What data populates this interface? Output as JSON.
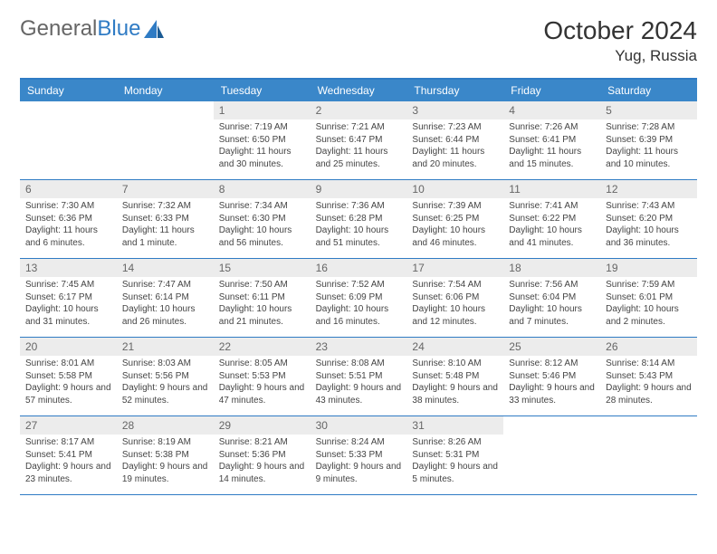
{
  "brand": {
    "part1": "General",
    "part2": "Blue"
  },
  "title": "October 2024",
  "location": "Yug, Russia",
  "colors": {
    "header_bg": "#3a87c9",
    "border": "#2f7bc4",
    "daynum_bg": "#ececec",
    "text": "#444444"
  },
  "day_names": [
    "Sunday",
    "Monday",
    "Tuesday",
    "Wednesday",
    "Thursday",
    "Friday",
    "Saturday"
  ],
  "weeks": [
    [
      {
        "empty": true
      },
      {
        "empty": true
      },
      {
        "num": "1",
        "sunrise": "Sunrise: 7:19 AM",
        "sunset": "Sunset: 6:50 PM",
        "daylight": "Daylight: 11 hours and 30 minutes."
      },
      {
        "num": "2",
        "sunrise": "Sunrise: 7:21 AM",
        "sunset": "Sunset: 6:47 PM",
        "daylight": "Daylight: 11 hours and 25 minutes."
      },
      {
        "num": "3",
        "sunrise": "Sunrise: 7:23 AM",
        "sunset": "Sunset: 6:44 PM",
        "daylight": "Daylight: 11 hours and 20 minutes."
      },
      {
        "num": "4",
        "sunrise": "Sunrise: 7:26 AM",
        "sunset": "Sunset: 6:41 PM",
        "daylight": "Daylight: 11 hours and 15 minutes."
      },
      {
        "num": "5",
        "sunrise": "Sunrise: 7:28 AM",
        "sunset": "Sunset: 6:39 PM",
        "daylight": "Daylight: 11 hours and 10 minutes."
      }
    ],
    [
      {
        "num": "6",
        "sunrise": "Sunrise: 7:30 AM",
        "sunset": "Sunset: 6:36 PM",
        "daylight": "Daylight: 11 hours and 6 minutes."
      },
      {
        "num": "7",
        "sunrise": "Sunrise: 7:32 AM",
        "sunset": "Sunset: 6:33 PM",
        "daylight": "Daylight: 11 hours and 1 minute."
      },
      {
        "num": "8",
        "sunrise": "Sunrise: 7:34 AM",
        "sunset": "Sunset: 6:30 PM",
        "daylight": "Daylight: 10 hours and 56 minutes."
      },
      {
        "num": "9",
        "sunrise": "Sunrise: 7:36 AM",
        "sunset": "Sunset: 6:28 PM",
        "daylight": "Daylight: 10 hours and 51 minutes."
      },
      {
        "num": "10",
        "sunrise": "Sunrise: 7:39 AM",
        "sunset": "Sunset: 6:25 PM",
        "daylight": "Daylight: 10 hours and 46 minutes."
      },
      {
        "num": "11",
        "sunrise": "Sunrise: 7:41 AM",
        "sunset": "Sunset: 6:22 PM",
        "daylight": "Daylight: 10 hours and 41 minutes."
      },
      {
        "num": "12",
        "sunrise": "Sunrise: 7:43 AM",
        "sunset": "Sunset: 6:20 PM",
        "daylight": "Daylight: 10 hours and 36 minutes."
      }
    ],
    [
      {
        "num": "13",
        "sunrise": "Sunrise: 7:45 AM",
        "sunset": "Sunset: 6:17 PM",
        "daylight": "Daylight: 10 hours and 31 minutes."
      },
      {
        "num": "14",
        "sunrise": "Sunrise: 7:47 AM",
        "sunset": "Sunset: 6:14 PM",
        "daylight": "Daylight: 10 hours and 26 minutes."
      },
      {
        "num": "15",
        "sunrise": "Sunrise: 7:50 AM",
        "sunset": "Sunset: 6:11 PM",
        "daylight": "Daylight: 10 hours and 21 minutes."
      },
      {
        "num": "16",
        "sunrise": "Sunrise: 7:52 AM",
        "sunset": "Sunset: 6:09 PM",
        "daylight": "Daylight: 10 hours and 16 minutes."
      },
      {
        "num": "17",
        "sunrise": "Sunrise: 7:54 AM",
        "sunset": "Sunset: 6:06 PM",
        "daylight": "Daylight: 10 hours and 12 minutes."
      },
      {
        "num": "18",
        "sunrise": "Sunrise: 7:56 AM",
        "sunset": "Sunset: 6:04 PM",
        "daylight": "Daylight: 10 hours and 7 minutes."
      },
      {
        "num": "19",
        "sunrise": "Sunrise: 7:59 AM",
        "sunset": "Sunset: 6:01 PM",
        "daylight": "Daylight: 10 hours and 2 minutes."
      }
    ],
    [
      {
        "num": "20",
        "sunrise": "Sunrise: 8:01 AM",
        "sunset": "Sunset: 5:58 PM",
        "daylight": "Daylight: 9 hours and 57 minutes."
      },
      {
        "num": "21",
        "sunrise": "Sunrise: 8:03 AM",
        "sunset": "Sunset: 5:56 PM",
        "daylight": "Daylight: 9 hours and 52 minutes."
      },
      {
        "num": "22",
        "sunrise": "Sunrise: 8:05 AM",
        "sunset": "Sunset: 5:53 PM",
        "daylight": "Daylight: 9 hours and 47 minutes."
      },
      {
        "num": "23",
        "sunrise": "Sunrise: 8:08 AM",
        "sunset": "Sunset: 5:51 PM",
        "daylight": "Daylight: 9 hours and 43 minutes."
      },
      {
        "num": "24",
        "sunrise": "Sunrise: 8:10 AM",
        "sunset": "Sunset: 5:48 PM",
        "daylight": "Daylight: 9 hours and 38 minutes."
      },
      {
        "num": "25",
        "sunrise": "Sunrise: 8:12 AM",
        "sunset": "Sunset: 5:46 PM",
        "daylight": "Daylight: 9 hours and 33 minutes."
      },
      {
        "num": "26",
        "sunrise": "Sunrise: 8:14 AM",
        "sunset": "Sunset: 5:43 PM",
        "daylight": "Daylight: 9 hours and 28 minutes."
      }
    ],
    [
      {
        "num": "27",
        "sunrise": "Sunrise: 8:17 AM",
        "sunset": "Sunset: 5:41 PM",
        "daylight": "Daylight: 9 hours and 23 minutes."
      },
      {
        "num": "28",
        "sunrise": "Sunrise: 8:19 AM",
        "sunset": "Sunset: 5:38 PM",
        "daylight": "Daylight: 9 hours and 19 minutes."
      },
      {
        "num": "29",
        "sunrise": "Sunrise: 8:21 AM",
        "sunset": "Sunset: 5:36 PM",
        "daylight": "Daylight: 9 hours and 14 minutes."
      },
      {
        "num": "30",
        "sunrise": "Sunrise: 8:24 AM",
        "sunset": "Sunset: 5:33 PM",
        "daylight": "Daylight: 9 hours and 9 minutes."
      },
      {
        "num": "31",
        "sunrise": "Sunrise: 8:26 AM",
        "sunset": "Sunset: 5:31 PM",
        "daylight": "Daylight: 9 hours and 5 minutes."
      },
      {
        "empty": true
      },
      {
        "empty": true
      }
    ]
  ]
}
